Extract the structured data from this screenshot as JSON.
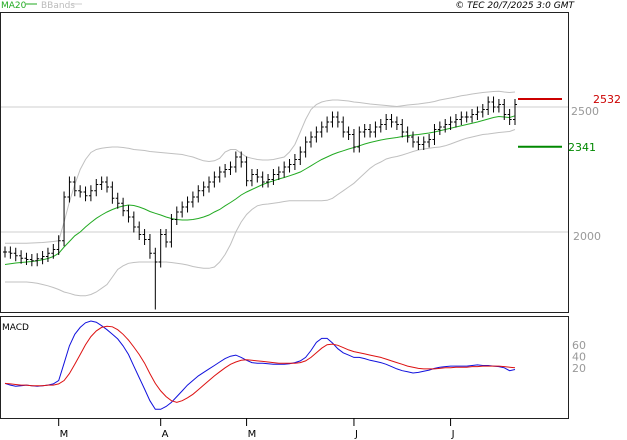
{
  "header": {
    "ma_label": "MA20",
    "bb_label": "BBands",
    "copyright": "© TEC 20/7/2025 3:0 GMT"
  },
  "colors": {
    "ma": "#22aa22",
    "bands": "#c0c0c0",
    "price_bar": "#000000",
    "macd": "#1111dd",
    "signal": "#dd1111",
    "resistance": "#cc0000",
    "support": "#008800",
    "grid": "#cfcfcf",
    "frame": "#222222"
  },
  "chart_data": [
    {
      "type": "ohlc",
      "title": "",
      "legend": [
        "MA20",
        "BBands"
      ],
      "legend_position": "top-left",
      "y_ticks": [
        "2500",
        "2000"
      ],
      "y_tick_values": [
        2500,
        2000
      ],
      "ylim": [
        1680,
        2880
      ],
      "grid": true,
      "x_month_labels": [
        "M",
        "A",
        "M",
        "J",
        "J"
      ],
      "x_month_indices": [
        10,
        29,
        45,
        65,
        83
      ],
      "n_bars": 96,
      "close": [
        1920,
        1915,
        1905,
        1895,
        1890,
        1885,
        1893,
        1902,
        1915,
        1930,
        1965,
        2140,
        2200,
        2165,
        2160,
        2145,
        2165,
        2190,
        2200,
        2180,
        2135,
        2115,
        2085,
        2060,
        2020,
        1990,
        1970,
        1915,
        1880,
        1990,
        1960,
        2050,
        2080,
        2100,
        2120,
        2140,
        2165,
        2180,
        2200,
        2220,
        2240,
        2250,
        2260,
        2300,
        2280,
        2205,
        2230,
        2220,
        2200,
        2210,
        2230,
        2240,
        2260,
        2270,
        2290,
        2320,
        2360,
        2380,
        2400,
        2420,
        2440,
        2460,
        2440,
        2400,
        2390,
        2340,
        2400,
        2410,
        2400,
        2420,
        2430,
        2450,
        2440,
        2430,
        2400,
        2380,
        2360,
        2350,
        2360,
        2370,
        2410,
        2420,
        2430,
        2440,
        2450,
        2460,
        2460,
        2470,
        2480,
        2490,
        2520,
        2500,
        2510,
        2470,
        2450,
        2510
      ],
      "ma20": [
        1870,
        1873,
        1876,
        1878,
        1880,
        1882,
        1885,
        1889,
        1894,
        1902,
        1915,
        1940,
        1962,
        1985,
        2000,
        2020,
        2038,
        2055,
        2068,
        2080,
        2090,
        2098,
        2104,
        2108,
        2106,
        2100,
        2092,
        2082,
        2075,
        2068,
        2060,
        2054,
        2050,
        2048,
        2048,
        2050,
        2054,
        2060,
        2068,
        2080,
        2090,
        2105,
        2118,
        2132,
        2148,
        2160,
        2170,
        2180,
        2190,
        2198,
        2205,
        2212,
        2218,
        2225,
        2232,
        2240,
        2252,
        2265,
        2278,
        2290,
        2300,
        2310,
        2318,
        2325,
        2332,
        2338,
        2345,
        2352,
        2358,
        2363,
        2368,
        2372,
        2375,
        2378,
        2382,
        2385,
        2388,
        2390,
        2393,
        2396,
        2400,
        2405,
        2410,
        2415,
        2420,
        2425,
        2430,
        2435,
        2440,
        2446,
        2452,
        2458,
        2462,
        2460,
        2458,
        2465
      ],
      "bb_upper": [
        1955,
        1955,
        1955,
        1955,
        1955,
        1956,
        1957,
        1958,
        1960,
        1962,
        1965,
        2040,
        2120,
        2190,
        2250,
        2290,
        2318,
        2330,
        2335,
        2338,
        2340,
        2340,
        2338,
        2335,
        2330,
        2328,
        2326,
        2322,
        2320,
        2318,
        2316,
        2314,
        2312,
        2310,
        2305,
        2300,
        2292,
        2285,
        2282,
        2285,
        2295,
        2320,
        2330,
        2330,
        2315,
        2300,
        2295,
        2290,
        2288,
        2288,
        2290,
        2295,
        2300,
        2320,
        2350,
        2400,
        2450,
        2490,
        2510,
        2520,
        2525,
        2528,
        2528,
        2526,
        2524,
        2520,
        2518,
        2515,
        2512,
        2510,
        2508,
        2506,
        2504,
        2502,
        2505,
        2508,
        2510,
        2512,
        2515,
        2518,
        2522,
        2528,
        2532,
        2536,
        2540,
        2545,
        2548,
        2552,
        2555,
        2558,
        2560,
        2562,
        2563,
        2560,
        2558,
        2560
      ],
      "bb_lower": [
        1800,
        1800,
        1800,
        1800,
        1800,
        1798,
        1795,
        1790,
        1785,
        1778,
        1770,
        1760,
        1755,
        1748,
        1745,
        1745,
        1750,
        1760,
        1775,
        1790,
        1820,
        1850,
        1865,
        1875,
        1878,
        1880,
        1880,
        1880,
        1880,
        1880,
        1880,
        1878,
        1875,
        1872,
        1868,
        1862,
        1858,
        1855,
        1855,
        1860,
        1880,
        1910,
        1950,
        2000,
        2040,
        2070,
        2090,
        2105,
        2110,
        2112,
        2115,
        2118,
        2122,
        2125,
        2125,
        2125,
        2125,
        2125,
        2125,
        2125,
        2127,
        2135,
        2150,
        2165,
        2180,
        2195,
        2215,
        2235,
        2255,
        2270,
        2280,
        2292,
        2298,
        2302,
        2308,
        2315,
        2322,
        2328,
        2332,
        2335,
        2338,
        2340,
        2345,
        2352,
        2360,
        2368,
        2375,
        2380,
        2385,
        2390,
        2392,
        2395,
        2398,
        2400,
        2402,
        2410
      ],
      "annotations": [
        {
          "label": "2532",
          "value": 2532,
          "color": "#cc0000",
          "kind": "resistance"
        },
        {
          "label": "2341",
          "value": 2341,
          "color": "#008800",
          "kind": "support"
        }
      ]
    },
    {
      "type": "line",
      "title": "MACD",
      "y_ticks": [
        "60",
        "40",
        "20"
      ],
      "y_tick_values": [
        60,
        40,
        20
      ],
      "ylim": [
        -65,
        110
      ],
      "grid": false,
      "series": [
        {
          "name": "",
          "color": "#1111dd",
          "values": [
            -5,
            -8,
            -10,
            -9,
            -8,
            -9,
            -10,
            -9,
            -8,
            -6,
            0,
            30,
            60,
            80,
            92,
            100,
            103,
            101,
            95,
            88,
            80,
            72,
            60,
            45,
            25,
            5,
            -15,
            -35,
            -50,
            -50,
            -45,
            -38,
            -28,
            -18,
            -8,
            0,
            8,
            14,
            20,
            26,
            32,
            38,
            42,
            44,
            40,
            35,
            31,
            30,
            30,
            29,
            28,
            28,
            28,
            29,
            31,
            34,
            40,
            52,
            66,
            73,
            73,
            65,
            55,
            48,
            44,
            40,
            40,
            38,
            35,
            33,
            31,
            28,
            24,
            20,
            17,
            15,
            13,
            14,
            16,
            18,
            21,
            23,
            24,
            25,
            25,
            25,
            25,
            26,
            27,
            26,
            26,
            25,
            24,
            22,
            17,
            19
          ]
        },
        {
          "name": "",
          "color": "#dd1111",
          "values": [
            -5,
            -6,
            -7,
            -8,
            -8,
            -9,
            -9,
            -9,
            -8,
            -8,
            -6,
            0,
            12,
            28,
            45,
            62,
            76,
            86,
            92,
            94,
            93,
            88,
            80,
            70,
            58,
            45,
            30,
            12,
            -5,
            -18,
            -28,
            -35,
            -38,
            -35,
            -30,
            -24,
            -16,
            -8,
            0,
            8,
            15,
            22,
            28,
            32,
            35,
            36,
            35,
            34,
            33,
            32,
            31,
            30,
            30,
            30,
            30,
            31,
            34,
            40,
            48,
            56,
            62,
            63,
            61,
            57,
            53,
            50,
            48,
            46,
            44,
            42,
            40,
            37,
            34,
            31,
            28,
            25,
            23,
            21,
            20,
            20,
            20,
            21,
            22,
            22,
            23,
            23,
            23,
            24,
            24,
            25,
            25,
            25,
            25,
            24,
            23,
            22
          ]
        }
      ]
    }
  ]
}
